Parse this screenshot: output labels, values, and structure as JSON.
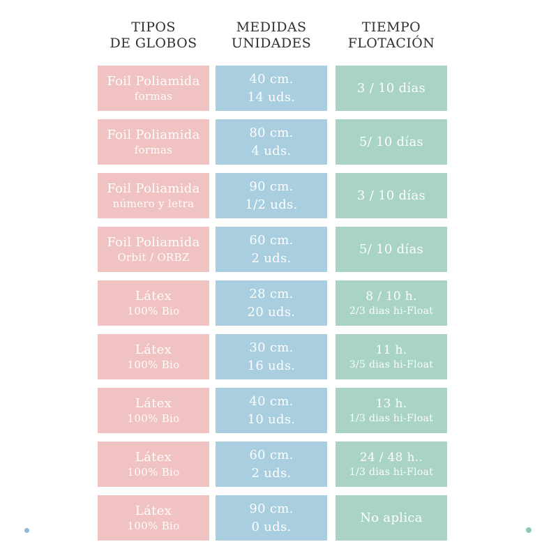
{
  "colors": {
    "pink": "#F0C2C1",
    "blue": "#A8CEDF",
    "green": "#A8D3C6",
    "header_text": "#303030",
    "cell_text": "#FDFDFD",
    "dot_blue": "#8CB9DA",
    "dot_teal": "#87C8B7",
    "background": "#FFFFFF"
  },
  "headers": [
    {
      "line1": "TIPOS",
      "line2": "DE GLOBOS"
    },
    {
      "line1": "MEDIDAS",
      "line2": "UNIDADES"
    },
    {
      "line1": "TIEMPO",
      "line2": "FLOTACIÓN"
    }
  ],
  "rows": [
    {
      "tipo": [
        "Foil Poliamida",
        "formas"
      ],
      "medida": [
        "40 cm.",
        "14 uds."
      ],
      "tiempo": [
        "3 / 10 días"
      ]
    },
    {
      "tipo": [
        "Foil Poliamida",
        "formas"
      ],
      "medida": [
        "80 cm.",
        "4 uds."
      ],
      "tiempo": [
        "5/ 10 días"
      ]
    },
    {
      "tipo": [
        "Foil Poliamida",
        "número y letra"
      ],
      "medida": [
        "90 cm.",
        "1/2 uds."
      ],
      "tiempo": [
        "3 / 10 días"
      ]
    },
    {
      "tipo": [
        "Foil Poliamida",
        "Orbit / ORBZ"
      ],
      "medida": [
        "60 cm.",
        "2 uds."
      ],
      "tiempo": [
        "5/ 10 días"
      ]
    },
    {
      "tipo": [
        "Látex",
        "100% Bio"
      ],
      "medida": [
        "28 cm.",
        "20 uds."
      ],
      "tiempo": [
        "8 / 10 h.",
        "2/3 dias hi-Float"
      ]
    },
    {
      "tipo": [
        "Látex",
        "100% Bio"
      ],
      "medida": [
        "30 cm.",
        "16 uds."
      ],
      "tiempo": [
        "11 h.",
        "3/5 dias hi-Float"
      ]
    },
    {
      "tipo": [
        "Látex",
        "100% Bio"
      ],
      "medida": [
        "40 cm.",
        "10 uds."
      ],
      "tiempo": [
        "13 h.",
        "1/3 dias hi-Float"
      ]
    },
    {
      "tipo": [
        "Látex",
        "100% Bio"
      ],
      "medida": [
        "60 cm.",
        "2 uds."
      ],
      "tiempo": [
        "24 / 48 h..",
        "1/3 dias hi-Float"
      ]
    },
    {
      "tipo": [
        "Látex",
        "100% Bio"
      ],
      "medida": [
        "90 cm.",
        "0 uds."
      ],
      "tiempo": [
        "No aplica"
      ]
    }
  ],
  "chart_data": {
    "type": "table",
    "columns": [
      "TIPOS DE GLOBOS",
      "MEDIDAS UNIDADES",
      "TIEMPO FLOTACIÓN"
    ],
    "rows": [
      [
        "Foil Poliamida formas",
        "40 cm. 14 uds.",
        "3 / 10 días"
      ],
      [
        "Foil Poliamida formas",
        "80 cm. 4 uds.",
        "5/ 10 días"
      ],
      [
        "Foil Poliamida número y letra",
        "90 cm. 1/2 uds.",
        "3 / 10 días"
      ],
      [
        "Foil Poliamida Orbit / ORBZ",
        "60 cm. 2 uds.",
        "5/ 10 días"
      ],
      [
        "Látex 100% Bio",
        "28 cm. 20 uds.",
        "8 / 10 h. 2/3 dias hi-Float"
      ],
      [
        "Látex 100% Bio",
        "30 cm. 16 uds.",
        "11 h. 3/5 dias hi-Float"
      ],
      [
        "Látex 100% Bio",
        "40 cm. 10 uds.",
        "13 h. 1/3 dias hi-Float"
      ],
      [
        "Látex 100% Bio",
        "60 cm. 2 uds.",
        "24 / 48 h.. 1/3 dias hi-Float"
      ],
      [
        "Látex 100% Bio",
        "90 cm. 0 uds.",
        "No aplica"
      ]
    ],
    "layout": {
      "column_colors": [
        "#F0C2C1",
        "#A8CEDF",
        "#A8D3C6"
      ],
      "grid": false,
      "legend": "none"
    }
  }
}
